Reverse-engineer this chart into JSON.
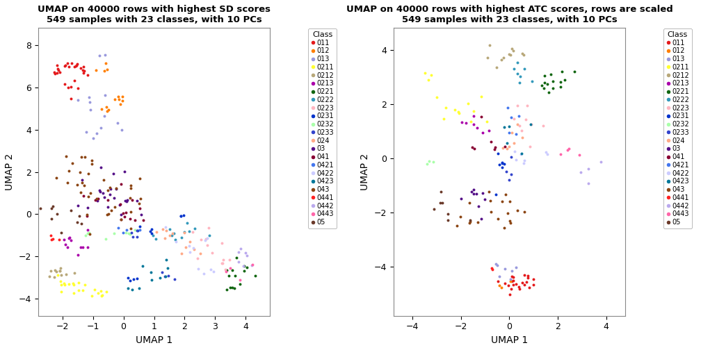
{
  "title1": "UMAP on 40000 rows with highest SD scores\n549 samples with 23 classes, with 10 PCs",
  "title2": "UMAP on 40000 rows with highest ATC scores, rows are scaled\n549 samples with 23 classes, with 10 PCs",
  "xlabel": "UMAP 1",
  "ylabel": "UMAP 2",
  "classes": [
    "011",
    "012",
    "013",
    "0211",
    "0212",
    "0213",
    "0221",
    "0222",
    "0223",
    "0231",
    "0232",
    "0233",
    "024",
    "03",
    "041",
    "0421",
    "0422",
    "0423",
    "043",
    "0441",
    "0442",
    "0443",
    "05"
  ],
  "colors": {
    "011": "#E41A1C",
    "012": "#FF7F00",
    "013": "#9999DD",
    "0211": "#FFFF33",
    "0212": "#B8A87A",
    "0213": "#AA00AA",
    "0221": "#116611",
    "0222": "#3399BB",
    "0223": "#FFB6C1",
    "0231": "#0033CC",
    "0232": "#AAFFAA",
    "0233": "#3344CC",
    "024": "#FFAA88",
    "03": "#551188",
    "041": "#880033",
    "0421": "#4477EE",
    "0422": "#CCCCFF",
    "0423": "#007799",
    "043": "#8B4513",
    "0441": "#FF2222",
    "0442": "#BBAAEE",
    "0443": "#FF66AA",
    "05": "#6B3A2A"
  },
  "xlim1": [
    -2.8,
    4.8
  ],
  "ylim1": [
    -4.8,
    8.8
  ],
  "xlim2": [
    -4.8,
    4.8
  ],
  "ylim2": [
    -5.8,
    4.8
  ],
  "xticks1": [
    -2,
    -1,
    0,
    1,
    2,
    3,
    4
  ],
  "yticks1": [
    -4,
    -2,
    0,
    2,
    4,
    6,
    8
  ],
  "xticks2": [
    -4,
    -2,
    0,
    2,
    4
  ],
  "yticks2": [
    -4,
    -2,
    0,
    2,
    4
  ],
  "point_size": 8
}
